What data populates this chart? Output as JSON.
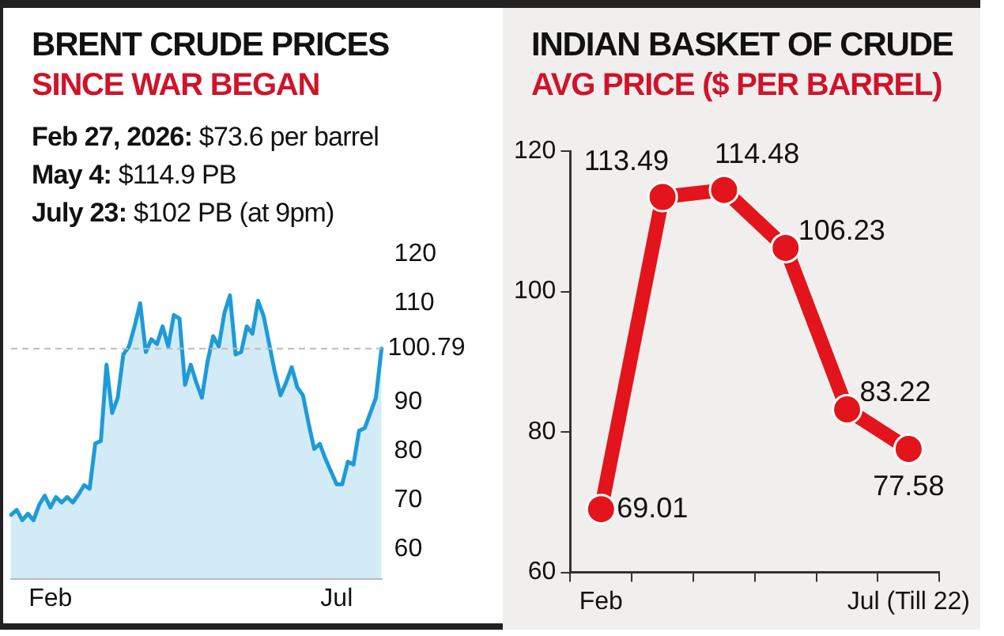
{
  "chart_data": [
    {
      "type": "area",
      "title": "BRENT CRUDE PRICES",
      "subtitle": "SINCE WAR BEGAN",
      "annotations": [
        "Feb 27, 2026: $73.6 per barrel",
        "May 4: $114.9 PB",
        "July 23: $102 PB (at 9pm)"
      ],
      "categories": [
        null,
        null,
        null,
        null,
        null,
        null,
        null,
        "Feb",
        null,
        null,
        null,
        null,
        null,
        null,
        null,
        null,
        null,
        null,
        null,
        null,
        null,
        null,
        null,
        null,
        null,
        null,
        null,
        null,
        null,
        null,
        null,
        null,
        null,
        null,
        null,
        null,
        null,
        null,
        null,
        null,
        null,
        null,
        null,
        null,
        null,
        null,
        null,
        null,
        null,
        null,
        null,
        null,
        null,
        null,
        null,
        null,
        null,
        null,
        "Jul",
        null,
        null,
        null,
        null,
        null,
        null,
        null,
        null
      ],
      "series": [
        {
          "color": "#1e9bd7",
          "values": [
            67.0,
            68,
            65.9,
            67.2,
            65.9,
            69,
            70.9,
            68.5,
            70.6,
            69.5,
            70.6,
            69.5,
            71.1,
            73,
            72.3,
            81.5,
            82,
            97.5,
            87.7,
            90.8,
            99.6,
            101.2,
            105.3,
            110,
            100.1,
            102.7,
            101.7,
            105.3,
            101.2,
            107.6,
            106.9,
            93.4,
            97.5,
            93.9,
            90.8,
            98.1,
            103.3,
            101.2,
            108,
            111.6,
            99.6,
            100.1,
            105.3,
            103.8,
            110.5,
            107.4,
            101.7,
            96,
            91.3,
            93.9,
            97,
            92.9,
            91.3,
            85.6,
            80.4,
            81.4,
            78.4,
            75.8,
            73.2,
            73.2,
            77.8,
            77.2,
            84.1,
            84.6,
            87.7,
            90.8,
            100.79
          ]
        }
      ],
      "ylim": [
        54,
        120
      ],
      "yticks": [
        60,
        70,
        80,
        90,
        110,
        120
      ],
      "ref_lines": [
        {
          "axis": "y",
          "value": 100.79,
          "label": "100.79",
          "color": "#bbbbbb",
          "line_style": "dashed"
        }
      ],
      "grid": false,
      "legend": false
    },
    {
      "type": "line",
      "title": "INDIAN BASKET OF CRUDE",
      "subtitle": "AVG PRICE ($ PER BARREL)",
      "categories": [
        "Feb",
        null,
        null,
        null,
        null,
        "Jul (Till 22)"
      ],
      "series": [
        {
          "color": "#e3141b",
          "values": [
            69.01,
            113.49,
            114.48,
            106.23,
            83.22,
            77.58
          ]
        }
      ],
      "ylim": [
        60,
        120
      ],
      "yticks": [
        60,
        80,
        100,
        120
      ],
      "data_labels": true,
      "marker": "circle",
      "grid": false,
      "legend": false
    }
  ]
}
